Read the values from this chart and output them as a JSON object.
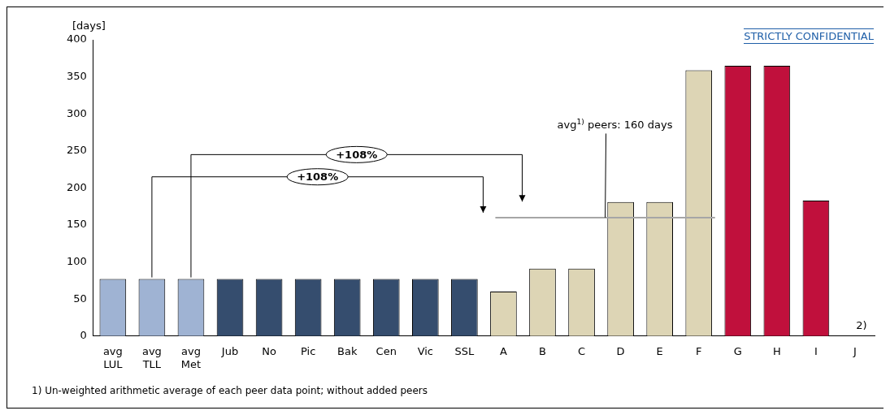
{
  "chart_data": {
    "type": "bar",
    "ylabel": "[days]",
    "categories": [
      "avg LUL",
      "avg TLL",
      "avg Met",
      "Jub",
      "No",
      "Pic",
      "Bak",
      "Cen",
      "Vic",
      "SSL",
      "A",
      "B",
      "C",
      "D",
      "E",
      "F",
      "G",
      "H",
      "I",
      "J"
    ],
    "values": [
      77,
      77,
      77,
      77,
      77,
      77,
      77,
      77,
      77,
      77,
      60,
      91,
      91,
      181,
      181,
      359,
      365,
      365,
      183,
      null
    ],
    "colors": [
      "#9fb3d3",
      "#9fb3d3",
      "#9fb3d3",
      "#354d6e",
      "#354d6e",
      "#354d6e",
      "#354d6e",
      "#354d6e",
      "#354d6e",
      "#354d6e",
      "#ddd5b5",
      "#ddd5b5",
      "#ddd5b5",
      "#ddd5b5",
      "#ddd5b5",
      "#ddd5b5",
      "#c0103c",
      "#c0103c",
      "#c0103c",
      "#c0103c"
    ],
    "ylim": [
      0,
      400
    ],
    "yticks": [
      0,
      50,
      100,
      150,
      200,
      250,
      300,
      350,
      400
    ],
    "grid": false,
    "legend": false,
    "ref_lines": [
      {
        "axis": "y",
        "value": 160,
        "label": "avg$^{1)}$ peers: 160 days",
        "color": "#a6a6a6"
      }
    ],
    "annotations": [
      "STRICTLY CONFIDENTIAL",
      "+108%",
      "+108%",
      "2)",
      "1) Un-weighted arithmetic average of each peer data point; without added peers"
    ]
  }
}
